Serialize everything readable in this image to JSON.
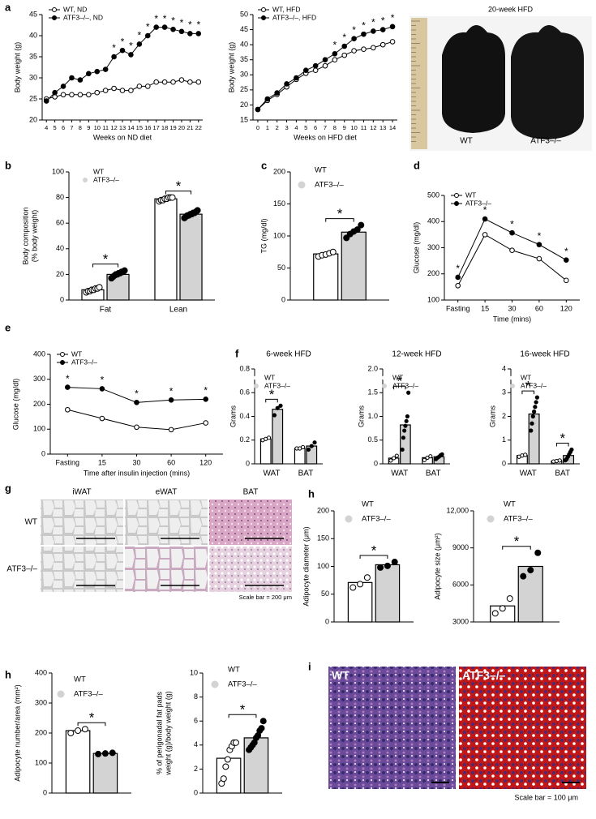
{
  "chart_data": [
    {
      "type": "line",
      "panel": "a",
      "ylabel": [
        "Body weight (g)"
      ],
      "xlabel": "Weeks on ND diet",
      "x": [
        4,
        5,
        6,
        7,
        8,
        9,
        10,
        11,
        12,
        13,
        14,
        15,
        16,
        17,
        18,
        19,
        20,
        21,
        22
      ],
      "xlim": [
        3.5,
        22.5
      ],
      "xticks": [
        4,
        5,
        6,
        7,
        8,
        9,
        10,
        11,
        12,
        13,
        14,
        15,
        16,
        17,
        18,
        19,
        20,
        21,
        22
      ],
      "ylim": [
        20,
        45
      ],
      "yticks": [
        20,
        25,
        30,
        35,
        40,
        45
      ],
      "legend": "upper left",
      "significance": "*",
      "significant_x": [
        8,
        9,
        10,
        11,
        12,
        13,
        14,
        15,
        16,
        17,
        18
      ],
      "series": [
        {
          "name": "WT, ND",
          "color": "#000000",
          "marker": "open",
          "values": [
            25,
            25.5,
            26,
            26,
            26,
            26,
            26.5,
            27,
            27.5,
            27,
            27,
            28,
            28,
            29,
            29,
            29,
            29.5,
            29,
            29
          ]
        },
        {
          "name": "ATF3–/–, ND",
          "color": "#000000",
          "marker": "filled",
          "values": [
            24.5,
            26.5,
            28,
            30,
            29.5,
            31,
            31.5,
            32,
            35,
            36.5,
            35.5,
            38,
            40,
            42,
            42,
            41.5,
            41,
            40.5,
            40.5
          ]
        }
      ]
    },
    {
      "type": "line",
      "ylabel": [
        "Body weight (g)"
      ],
      "xlabel": "Weeks on HFD diet",
      "x": [
        0,
        1,
        2,
        3,
        4,
        5,
        6,
        7,
        8,
        9,
        10,
        11,
        12,
        13,
        14
      ],
      "xlim": [
        -0.5,
        14.5
      ],
      "xticks": [
        0,
        1,
        2,
        3,
        4,
        5,
        6,
        7,
        8,
        9,
        10,
        11,
        12,
        13,
        14
      ],
      "ylim": [
        15,
        50
      ],
      "yticks": [
        15,
        20,
        25,
        30,
        35,
        40,
        45,
        50
      ],
      "legend": "upper left",
      "significance": "*",
      "significant_x": [
        8,
        9,
        10,
        11,
        12,
        13,
        14
      ],
      "series": [
        {
          "name": "WT, HFD",
          "color": "#000000",
          "marker": "open",
          "values": [
            18.5,
            21.5,
            23.5,
            26,
            28.5,
            30.5,
            31.5,
            33,
            35,
            36.5,
            38,
            38.5,
            39,
            40,
            41
          ]
        },
        {
          "name": "ATF3–/–, HFD",
          "color": "#000000",
          "marker": "filled",
          "values": [
            18.5,
            22,
            24,
            27,
            29,
            31.5,
            33,
            35,
            37,
            39.5,
            42,
            43.5,
            44.5,
            45,
            46
          ]
        }
      ]
    },
    {
      "type": "photo",
      "title": "20-week HFD",
      "labels": [
        "WT",
        "ATF3–/–"
      ]
    },
    {
      "type": "bar",
      "panel": "b",
      "ylabel": [
        "Body composition",
        "(% body weight)"
      ],
      "categories": [
        "Fat",
        "Lean"
      ],
      "ylim": [
        0,
        100
      ],
      "yticks": [
        0,
        20,
        40,
        60,
        80,
        100
      ],
      "legend": "upper left",
      "significance": "*",
      "significant": [
        0,
        1
      ],
      "series": [
        {
          "name": "WT",
          "color": "#ffffff",
          "marker": "open",
          "values": [
            8,
            79
          ],
          "points": [
            [
              6,
              7,
              7,
              8,
              8,
              9,
              9,
              10
            ],
            [
              77,
              78,
              78,
              79,
              79,
              80,
              80,
              80
            ]
          ]
        },
        {
          "name": "ATF3–/–",
          "color": "#d3d3d3",
          "marker": "filled",
          "values": [
            20,
            67
          ],
          "points": [
            [
              17,
              18,
              19,
              20,
              20,
              21,
              21,
              22,
              22,
              23
            ],
            [
              64,
              65,
              66,
              66,
              67,
              67,
              68,
              68,
              69,
              70
            ]
          ]
        }
      ]
    },
    {
      "type": "bar",
      "panel": "c",
      "ylabel": [
        "TG (mg/dl)"
      ],
      "ylim": [
        0,
        200
      ],
      "yticks": [
        0,
        50,
        100,
        150,
        200
      ],
      "legend": "upper left",
      "significance": "*",
      "significant": [
        0
      ],
      "series": [
        {
          "name": "WT",
          "color": "#ffffff",
          "marker": "open",
          "values": [
            72
          ],
          "points": [
            [
              68,
              70,
              71,
              73,
              75
            ]
          ]
        },
        {
          "name": "ATF3–/–",
          "color": "#d3d3d3",
          "marker": "filled",
          "values": [
            106
          ],
          "points": [
            [
              97,
              103,
              107,
              110,
              117
            ]
          ]
        }
      ]
    },
    {
      "type": "line",
      "panel": "d",
      "ylabel": [
        "Glucose (mg/dl)"
      ],
      "xlabel": "Time (mins)",
      "categories": [
        "Fasting",
        "15",
        "30",
        "60",
        "120"
      ],
      "ylim": [
        100,
        500
      ],
      "yticks": [
        100,
        200,
        300,
        400,
        500
      ],
      "legend": "upper left",
      "significance": "*",
      "significant_x": [
        0,
        1,
        2,
        3,
        4
      ],
      "series": [
        {
          "name": "WT",
          "color": "#000000",
          "marker": "open",
          "values": [
            155,
            350,
            290,
            258,
            175
          ]
        },
        {
          "name": "ATF3–/–",
          "color": "#000000",
          "marker": "filled",
          "values": [
            187,
            410,
            357,
            312,
            253
          ]
        }
      ]
    },
    {
      "type": "line",
      "panel": "e",
      "ylabel": [
        "Glucose (mg/dl)"
      ],
      "xlabel": "Time after insulin injection (mins)",
      "categories": [
        "Fasting",
        "15",
        "30",
        "60",
        "120"
      ],
      "ylim": [
        0,
        400
      ],
      "yticks": [
        0,
        100,
        200,
        300,
        400
      ],
      "legend": "upper left",
      "significance": "*",
      "significant_x": [
        0,
        1,
        2,
        3,
        4
      ],
      "series": [
        {
          "name": "WT",
          "color": "#000000",
          "marker": "open",
          "values": [
            178,
            143,
            108,
            98,
            125
          ]
        },
        {
          "name": "ATF3–/–",
          "color": "#000000",
          "marker": "filled",
          "values": [
            268,
            262,
            207,
            217,
            220
          ]
        }
      ]
    },
    {
      "type": "bar",
      "panel": "f",
      "title": "6-week HFD",
      "ylabel": [
        "Grams"
      ],
      "categories": [
        "WAT",
        "BAT"
      ],
      "ylim": [
        0,
        0.8
      ],
      "yticks": [
        0,
        0.2,
        0.4,
        0.6,
        0.8
      ],
      "legend": "upper left",
      "significance": "*",
      "significant": [
        0
      ],
      "series": [
        {
          "name": "WT",
          "color": "#ffffff",
          "marker": "open",
          "values": [
            0.21,
            0.13
          ],
          "points": [
            [
              0.2,
              0.21,
              0.22
            ],
            [
              0.13,
              0.13,
              0.14
            ]
          ]
        },
        {
          "name": "ATF3–/–",
          "color": "#d3d3d3",
          "marker": "filled",
          "values": [
            0.46,
            0.15
          ],
          "points": [
            [
              0.41,
              0.47,
              0.49
            ],
            [
              0.12,
              0.15,
              0.18
            ]
          ]
        }
      ]
    },
    {
      "type": "bar",
      "title": "12-week HFD",
      "ylabel": [
        "Grams"
      ],
      "categories": [
        "WAT",
        "BAT"
      ],
      "ylim": [
        0,
        2
      ],
      "yticks": [
        0,
        0.5,
        {
          "value": 1,
          "label": "1.0"
        },
        1.5,
        {
          "value": 2,
          "label": "2.0"
        }
      ],
      "legend": "upper left",
      "significance": "*",
      "significant": [
        0
      ],
      "series": [
        {
          "name": "WT",
          "color": "#ffffff",
          "marker": "open",
          "values": [
            0.12,
            0.13
          ],
          "points": [
            [
              0.07,
              0.12,
              0.17
            ],
            [
              0.08,
              0.13,
              0.16
            ]
          ]
        },
        {
          "name": "ATF3–/–",
          "color": "#d3d3d3",
          "marker": "filled",
          "values": [
            0.82,
            0.15
          ],
          "points": [
            [
              0.3,
              0.55,
              0.7,
              0.8,
              0.9,
              1.0,
              1.5
            ],
            [
              0.1,
              0.13,
              0.15,
              0.18,
              0.2
            ]
          ]
        }
      ]
    },
    {
      "type": "bar",
      "title": "16-week HFD",
      "ylabel": [
        "Grams"
      ],
      "categories": [
        "WAT",
        "BAT"
      ],
      "ylim": [
        0,
        4
      ],
      "yticks": [
        0,
        1,
        2,
        3,
        4
      ],
      "legend": "upper left",
      "significance": "*",
      "significant": [
        0,
        1
      ],
      "series": [
        {
          "name": "WT",
          "color": "#ffffff",
          "marker": "open",
          "values": [
            0.35,
            0.12
          ],
          "points": [
            [
              0.3,
              0.35,
              0.38
            ],
            [
              0.1,
              0.12,
              0.14
            ]
          ]
        },
        {
          "name": "ATF3–/–",
          "color": "#d3d3d3",
          "marker": "filled",
          "values": [
            2.1,
            0.35
          ],
          "points": [
            [
              1.4,
              1.7,
              2.0,
              2.2,
              2.4,
              2.6,
              2.8
            ],
            [
              0.15,
              0.2,
              0.3,
              0.4,
              0.5,
              0.6
            ]
          ]
        }
      ]
    },
    {
      "type": "histology",
      "panel": "g",
      "columns": [
        "iWAT",
        "eWAT",
        "BAT"
      ],
      "rows": [
        "WT",
        "ATF3–/–"
      ],
      "note": "Scale bar = 200 μm"
    },
    {
      "type": "bar",
      "panel": "h",
      "ylabel": [
        "Adipocyte diameter (μm)"
      ],
      "ylim": [
        0,
        200
      ],
      "yticks": [
        0,
        50,
        100,
        150,
        200
      ],
      "legend": "upper left",
      "significance": "*",
      "significant": [
        0
      ],
      "series": [
        {
          "name": "WT",
          "color": "#ffffff",
          "marker": "open",
          "values": [
            71
          ],
          "points": [
            [
              62,
              68,
              80
            ]
          ]
        },
        {
          "name": "ATF3–/–",
          "color": "#d3d3d3",
          "marker": "filled",
          "values": [
            103
          ],
          "points": [
            [
              98,
              101,
              108
            ]
          ]
        }
      ]
    },
    {
      "type": "bar",
      "ylabel": [
        "Adipocyte size (μm²)"
      ],
      "ylim": [
        3000,
        12000
      ],
      "yticks": [
        3000,
        6000,
        9000,
        {
          "value": 12000,
          "label": "12,000"
        }
      ],
      "legend": "upper left",
      "significance": "*",
      "significant": [
        0
      ],
      "series": [
        {
          "name": "WT",
          "color": "#ffffff",
          "marker": "open",
          "values": [
            4300
          ],
          "points": [
            [
              3700,
              4100,
              4900
            ]
          ]
        },
        {
          "name": "ATF3–/–",
          "color": "#d3d3d3",
          "marker": "filled",
          "values": [
            7500
          ],
          "points": [
            [
              6700,
              7200,
              8600
            ]
          ]
        }
      ]
    },
    {
      "type": "bar",
      "panel": "h",
      "ylabel": [
        "Adipocyte number/area (mm²)"
      ],
      "ylim": [
        0,
        400
      ],
      "yticks": [
        0,
        100,
        200,
        300,
        400
      ],
      "legend": "upper left",
      "significance": "*",
      "significant": [
        0
      ],
      "series": [
        {
          "name": "WT",
          "color": "#ffffff",
          "marker": "open",
          "values": [
            208
          ],
          "points": [
            [
              200,
              208,
              213
            ]
          ]
        },
        {
          "name": "ATF3–/–",
          "color": "#d3d3d3",
          "marker": "filled",
          "values": [
            132
          ],
          "points": [
            [
              130,
              132,
              134
            ]
          ]
        }
      ]
    },
    {
      "type": "bar",
      "ylabel": [
        "% of perigonadal fat pads",
        "weight (g)/body weight (g)"
      ],
      "ylim": [
        0,
        10
      ],
      "yticks": [
        0,
        2,
        4,
        6,
        8,
        10
      ],
      "legend": "upper left",
      "significance": "*",
      "significant": [
        0
      ],
      "series": [
        {
          "name": "WT",
          "color": "#ffffff",
          "marker": "open",
          "values": [
            2.9
          ],
          "points": [
            [
              0.8,
              1.2,
              2.2,
              2.8,
              3.6,
              3.9,
              4.2,
              4.2
            ]
          ]
        },
        {
          "name": "ATF3–/–",
          "color": "#d3d3d3",
          "marker": "filled",
          "values": [
            4.6
          ],
          "points": [
            [
              3.6,
              3.8,
              4.0,
              4.2,
              4.6,
              4.8,
              5.2,
              5.4,
              6.0
            ]
          ]
        }
      ]
    },
    {
      "type": "stain",
      "panel": "i",
      "labels": [
        "WT",
        "ATF3–/–"
      ],
      "note": "Scale bar = 100 μm"
    }
  ]
}
